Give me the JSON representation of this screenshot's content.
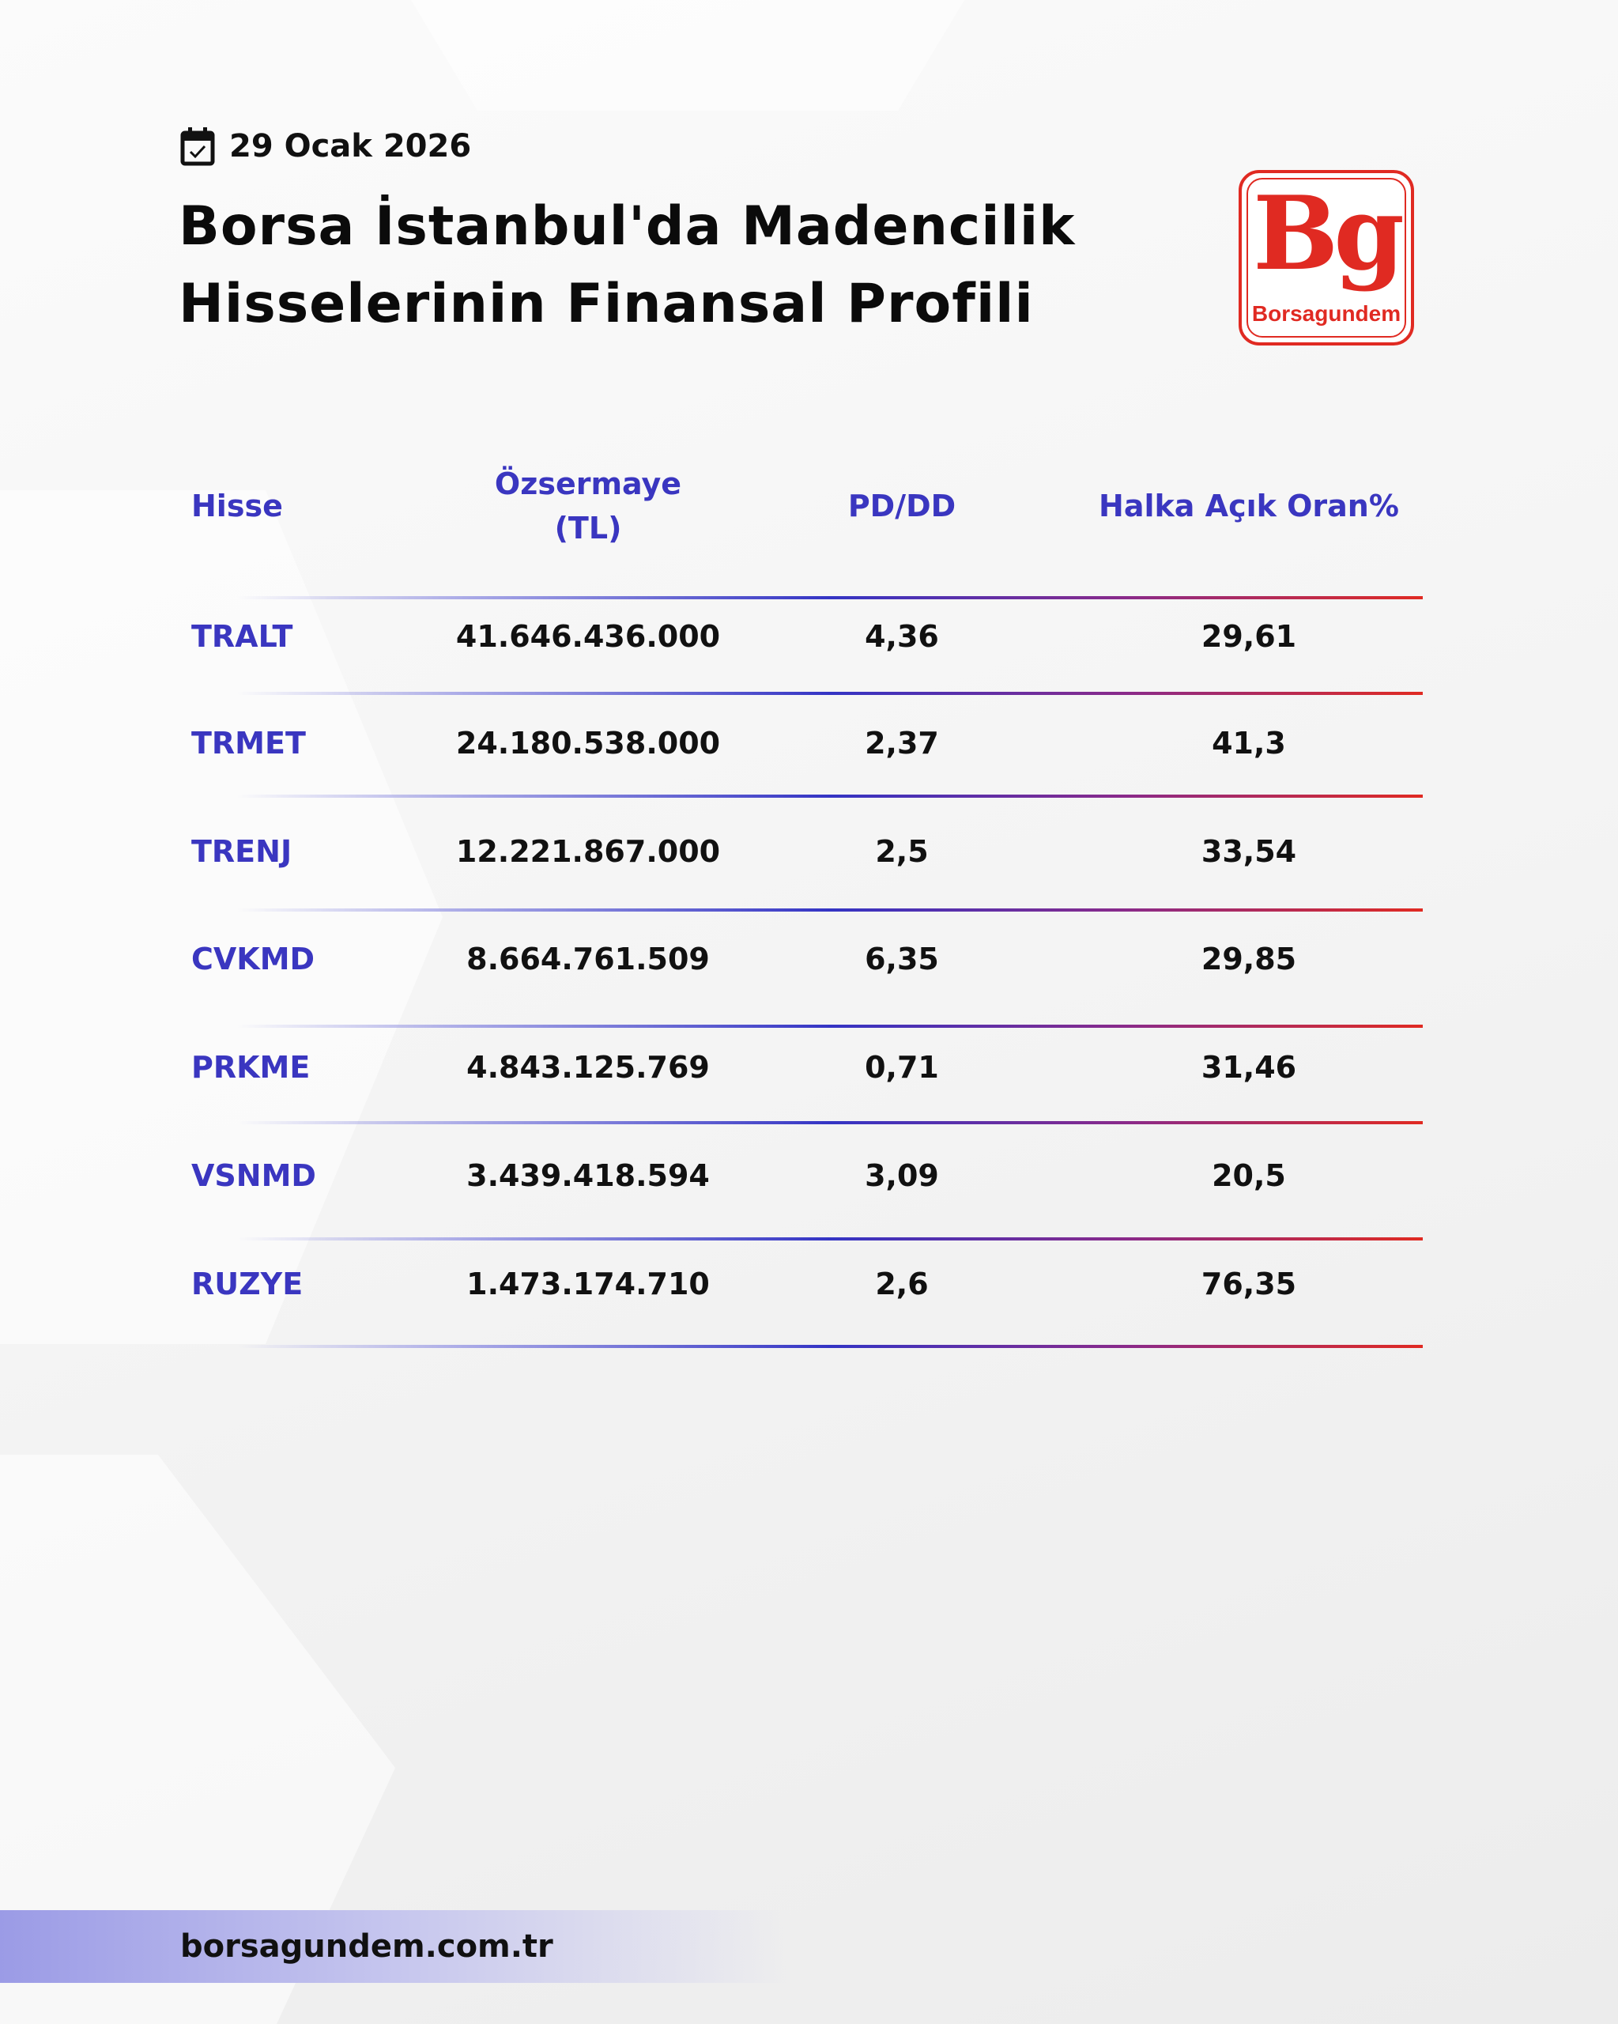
{
  "header": {
    "date": "29 Ocak 2026",
    "title_line1": "Borsa İstanbul'da Madencilik",
    "title_line2": "Hisselerinin Finansal Profili",
    "logo_text": "Bg",
    "logo_name": "Borsagundem"
  },
  "table": {
    "columns": [
      "Hisse",
      "Özsermaye",
      "(TL)",
      "PD/DD",
      "Halka Açık Oran%"
    ],
    "rows": [
      [
        "TRALT",
        "41.646.436.000",
        "4,36",
        "29,61"
      ],
      [
        "TRMET",
        "24.180.538.000",
        "2,37",
        "41,3"
      ],
      [
        "TRENJ",
        "12.221.867.000",
        "2,5",
        "33,54"
      ],
      [
        "CVKMD",
        "8.664.761.509",
        "6,35",
        "29,85"
      ],
      [
        "PRKME",
        "4.843.125.769",
        "0,71",
        "31,46"
      ],
      [
        "VSNMD",
        "3.439.418.594",
        "3,09",
        "20,5"
      ],
      [
        "RUZYE",
        "1.473.174.710",
        "2,6",
        "76,35"
      ]
    ]
  },
  "footer": {
    "url": "borsagundem.com.tr"
  },
  "colors": {
    "accent_blue": "#3a36c0",
    "brand_red": "#e02a22"
  }
}
